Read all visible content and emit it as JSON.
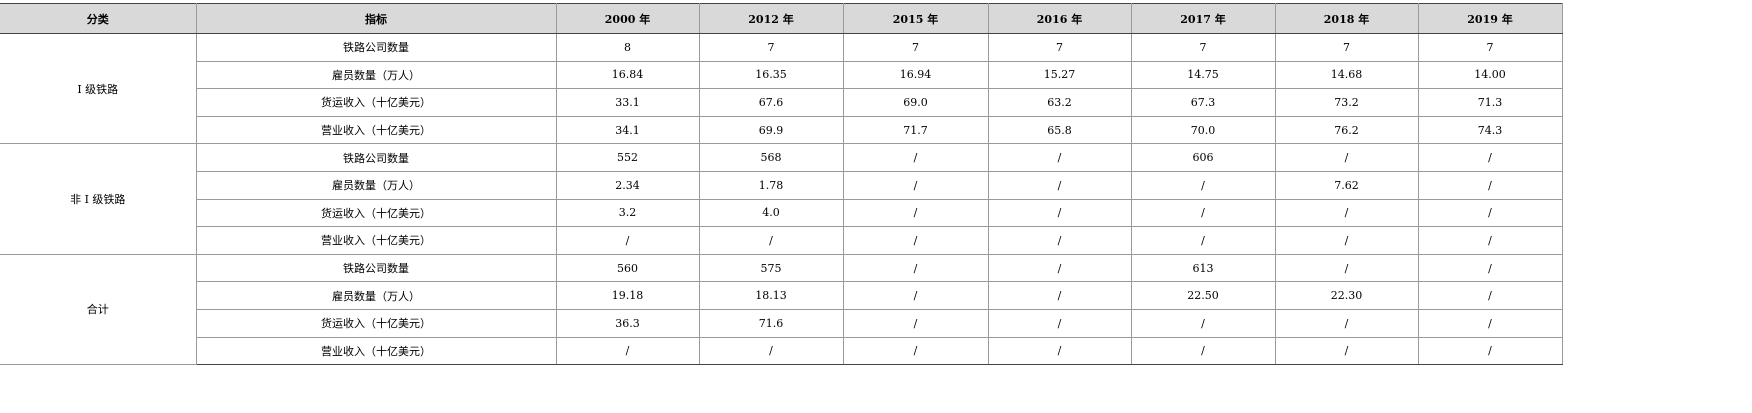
{
  "headers": [
    "分类",
    "指标",
    "2000 年",
    "2012 年",
    "2015 年",
    "2016 年",
    "2017 年",
    "2018 年",
    "2019 年"
  ],
  "groups": [
    {
      "name": "I 级铁路",
      "rows": [
        {
          "indicator": "铁路公司数量",
          "values": [
            "8",
            "7",
            "7",
            "7",
            "7",
            "7",
            "7"
          ]
        },
        {
          "indicator": "雇员数量（万人）",
          "values": [
            "16.84",
            "16.35",
            "16.94",
            "15.27",
            "14.75",
            "14.68",
            "14.00"
          ]
        },
        {
          "indicator": "货运收入（十亿美元）",
          "values": [
            "33.1",
            "67.6",
            "69.0",
            "63.2",
            "67.3",
            "73.2",
            "71.3"
          ]
        },
        {
          "indicator": "营业收入（十亿美元）",
          "values": [
            "34.1",
            "69.9",
            "71.7",
            "65.8",
            "70.0",
            "76.2",
            "74.3"
          ]
        }
      ]
    },
    {
      "name": "非 I 级铁路",
      "rows": [
        {
          "indicator": "铁路公司数量",
          "values": [
            "552",
            "568",
            "/",
            "/",
            "606",
            "/",
            "/"
          ]
        },
        {
          "indicator": "雇员数量（万人）",
          "values": [
            "2.34",
            "1.78",
            "/",
            "/",
            "/",
            "7.62",
            "/"
          ]
        },
        {
          "indicator": "货运收入（十亿美元）",
          "values": [
            "3.2",
            "4.0",
            "/",
            "/",
            "/",
            "/",
            "/"
          ]
        },
        {
          "indicator": "营业收入（十亿美元）",
          "values": [
            "/",
            "/",
            "/",
            "/",
            "/",
            "/",
            "/"
          ]
        }
      ]
    },
    {
      "name": "合计",
      "rows": [
        {
          "indicator": "铁路公司数量",
          "values": [
            "560",
            "575",
            "/",
            "/",
            "613",
            "/",
            "/"
          ]
        },
        {
          "indicator": "雇员数量（万人）",
          "values": [
            "19.18",
            "18.13",
            "/",
            "/",
            "22.50",
            "22.30",
            "/"
          ]
        },
        {
          "indicator": "货运收入（十亿美元）",
          "values": [
            "36.3",
            "71.6",
            "/",
            "/",
            "/",
            "/",
            "/"
          ]
        },
        {
          "indicator": "营业收入（十亿美元）",
          "values": [
            "/",
            "/",
            "/",
            "/",
            "/",
            "/",
            "/"
          ]
        }
      ]
    }
  ]
}
